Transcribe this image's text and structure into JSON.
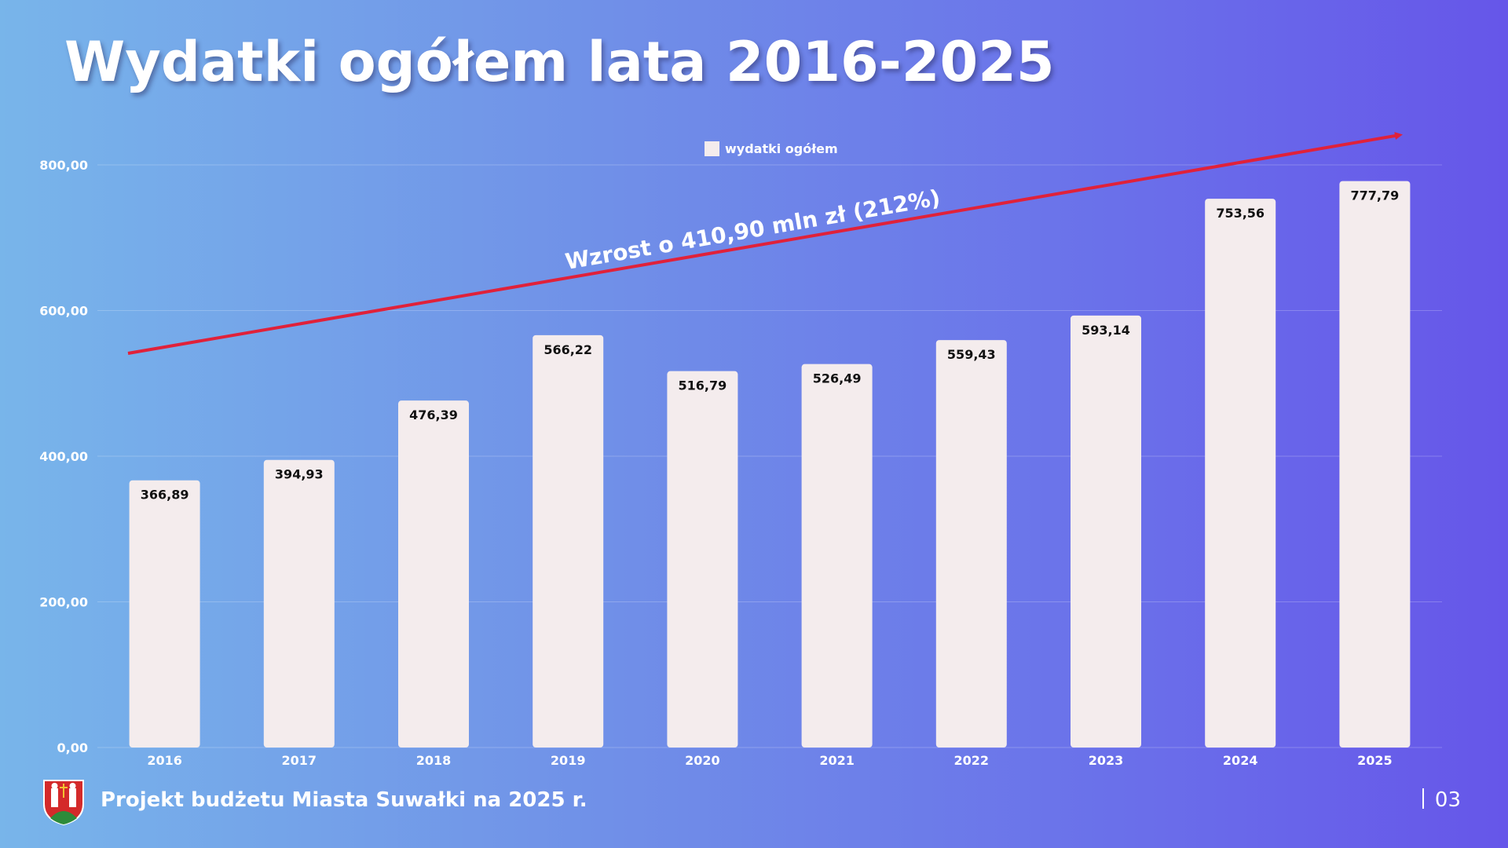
{
  "title": "Wydatki ogółem lata 2016-2025",
  "footer": {
    "text": "Projekt budżetu Miasta Suwałki na 2025 r.",
    "page": "03"
  },
  "colors": {
    "bar": "#f4eced",
    "arrow": "#e0213a",
    "text_dark": "#111111",
    "text_light": "#ffffff"
  },
  "chart_data": {
    "type": "bar",
    "categories": [
      "2016",
      "2017",
      "2018",
      "2019",
      "2020",
      "2021",
      "2022",
      "2023",
      "2024",
      "2025"
    ],
    "series": [
      {
        "name": "wydatki ogółem",
        "values": [
          366.89,
          394.93,
          476.39,
          566.22,
          516.79,
          526.49,
          559.43,
          593.14,
          753.56,
          777.79
        ]
      }
    ],
    "value_labels": [
      "366,89",
      "394,93",
      "476,39",
      "566,22",
      "516,79",
      "526,49",
      "559,43",
      "593,14",
      "753,56",
      "777,79"
    ],
    "y_ticks": [
      "0,00",
      "200,00",
      "400,00",
      "600,00",
      "800,00"
    ],
    "y_tick_values": [
      0,
      200,
      400,
      600,
      800
    ],
    "ylim": [
      0,
      800
    ],
    "legend": "top-center",
    "grid": true,
    "annotation": "Wzrost o 410,90 mln zł (212%)"
  }
}
